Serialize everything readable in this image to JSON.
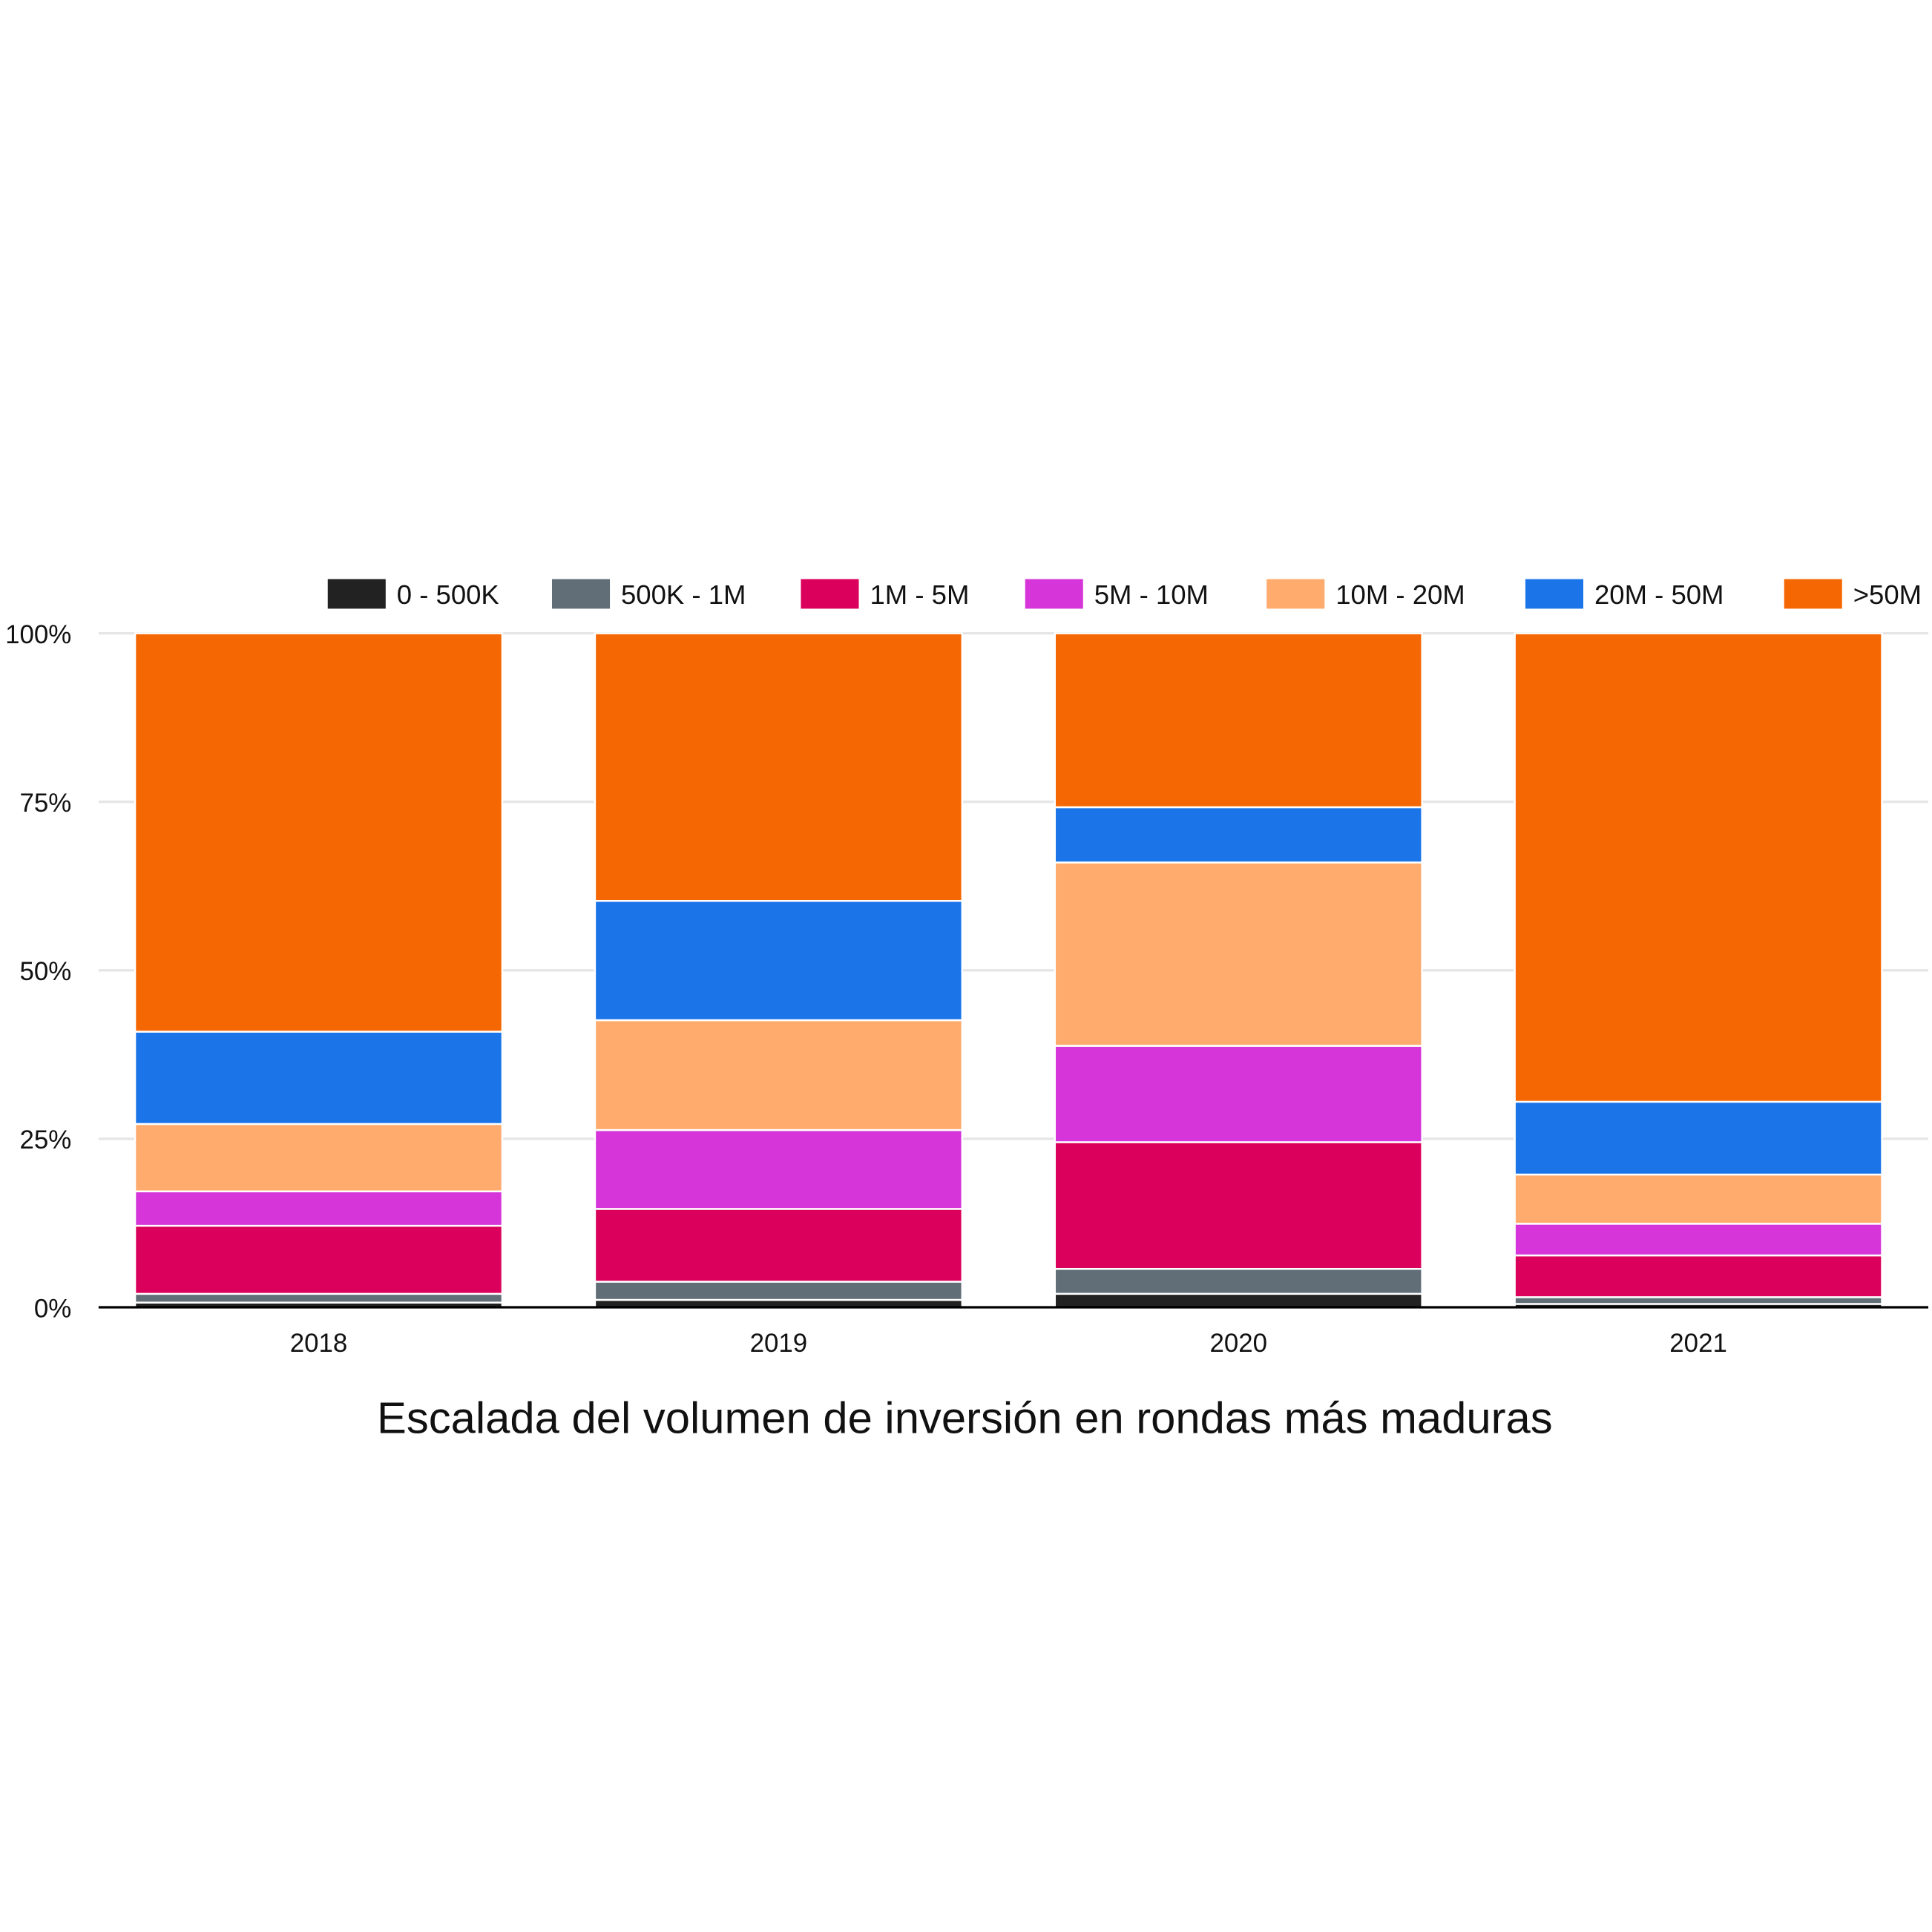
{
  "chart_data": {
    "type": "bar",
    "stacked": true,
    "normalized": true,
    "title": "Escalada del volumen de inversión en rondas más maduras",
    "xlabel": "",
    "ylabel": "",
    "categories": [
      "2018",
      "2019",
      "2020",
      "2021"
    ],
    "ylim": [
      0,
      100
    ],
    "yticks": [
      "0%",
      "25%",
      "50%",
      "75%",
      "100%"
    ],
    "grid": true,
    "legend_position": "top",
    "series": [
      {
        "name": "0 - 500K",
        "color": "#222222",
        "values": [
          0.7,
          1.1,
          2.0,
          0.5
        ]
      },
      {
        "name": "500K - 1M",
        "color": "#616e78",
        "values": [
          1.3,
          2.7,
          3.7,
          1.0
        ]
      },
      {
        "name": "1M - 5M",
        "color": "#db005b",
        "values": [
          10.1,
          10.8,
          18.8,
          6.2
        ]
      },
      {
        "name": "5M - 10M",
        "color": "#d535d9",
        "values": [
          5.1,
          11.7,
          14.3,
          4.7
        ]
      },
      {
        "name": "10M - 20M",
        "color": "#ffab6e",
        "values": [
          10.0,
          16.3,
          27.2,
          7.3
        ]
      },
      {
        "name": "20M - 50M",
        "color": "#1b75e8",
        "values": [
          13.7,
          17.7,
          8.2,
          10.8
        ]
      },
      {
        "name": ">50M",
        "color": "#f56702",
        "values": [
          59.1,
          39.7,
          25.8,
          69.5
        ]
      }
    ]
  }
}
